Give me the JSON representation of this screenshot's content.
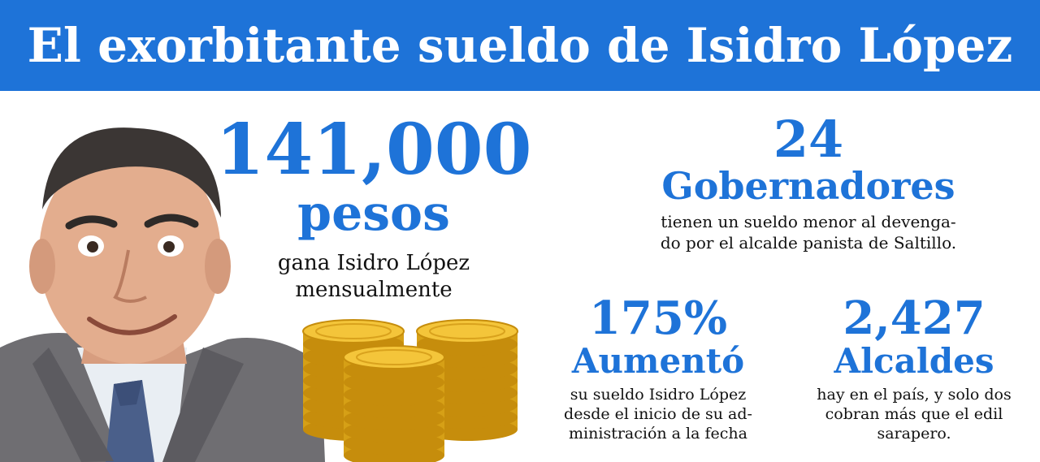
{
  "header": {
    "title": "El exorbitante sueldo de Isidro López"
  },
  "colors": {
    "banner": "#1e73d8",
    "accent": "#1e73d8",
    "text": "#111111"
  },
  "main_stat": {
    "number": "141,000",
    "unit": "pesos",
    "line1": "gana Isidro López",
    "line2": "mensualmente"
  },
  "governors_stat": {
    "number": "24",
    "unit": "Gobernadores",
    "line1": "tienen un sueldo menor al devenga-",
    "line2": "do por el alcalde panista de Saltillo."
  },
  "increase_stat": {
    "number": "175%",
    "unit": "Aumentó",
    "line1": "su sueldo Isidro López",
    "line2": "desde el inicio de su ad-",
    "line3": "ministración a la fecha"
  },
  "mayors_stat": {
    "number": "2,427",
    "unit": "Alcaldes",
    "line1": "hay en el país, y solo dos",
    "line2": "cobran más que el edil",
    "line3": "sarapero."
  },
  "images": {
    "portrait": "man-portrait",
    "coins": "gold-coin-stacks"
  }
}
